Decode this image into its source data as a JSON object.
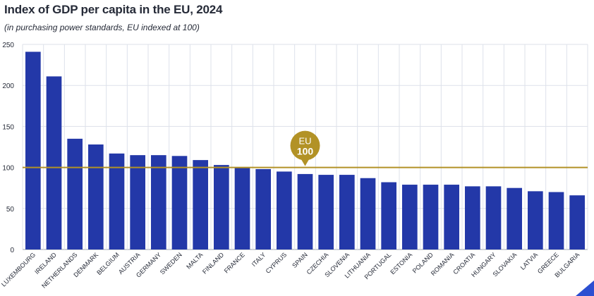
{
  "chart_data": {
    "type": "bar",
    "title": "Index of GDP per capita in the EU, 2024",
    "subtitle": "(in purchasing power standards, EU indexed at 100)",
    "xlabel": "",
    "ylabel": "",
    "ylim": [
      0,
      250
    ],
    "yticks": [
      "0",
      "50",
      "100",
      "150",
      "200",
      "250"
    ],
    "categories": [
      "LUXEMBOURG",
      "IRELAND",
      "NETHERLANDS",
      "DENMARK",
      "BELGIUM",
      "AUSTRIA",
      "GERMANY",
      "SWEDEN",
      "MALTA",
      "FINLAND",
      "FRANCE",
      "ITALY",
      "CYPRUS",
      "SPAIN",
      "CZECHIA",
      "SLOVENIA",
      "LITHUANIA",
      "PORTUGAL",
      "ESTONIA",
      "POLAND",
      "ROMANIA",
      "CROATIA",
      "HUNGARY",
      "SLOVAKIA",
      "LATVIA",
      "GREECE",
      "BULGARIA"
    ],
    "values": [
      241,
      211,
      135,
      128,
      117,
      115,
      115,
      114,
      109,
      103,
      100,
      98,
      95,
      92,
      91,
      91,
      87,
      82,
      79,
      79,
      79,
      77,
      77,
      75,
      71,
      70,
      66
    ],
    "reference_line": {
      "value": 100,
      "label_top": "EU",
      "label_bottom": "100",
      "anchor_category": "SPAIN"
    },
    "grid": true,
    "colors": {
      "bar": "#2338a8",
      "reference": "#b29226",
      "grid": "#dde1ea",
      "text": "#262b38"
    }
  }
}
